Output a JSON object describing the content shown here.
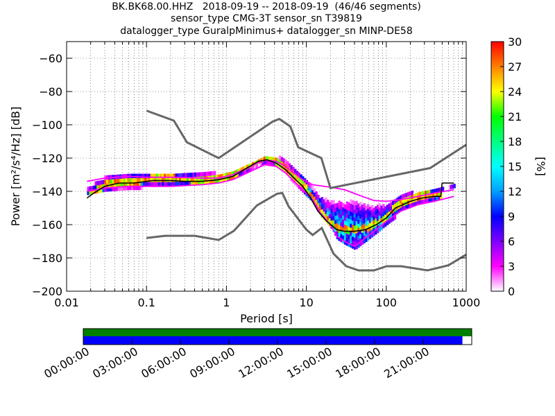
{
  "titles": [
    "BK.BK68.00.HHZ   2018-09-19 -- 2018-09-19  (46/46 segments)",
    "sensor_type CMG-3T sensor_sn T39819",
    "datalogger_type GuralpMinimus+ datalogger_sn MINP-DE58"
  ],
  "chart_data": {
    "type": "heatmap",
    "xlabel": "Period [s]",
    "ylabel": "Power [m²/s⁴/Hz] [dB]",
    "xscale": "log",
    "xlim": [
      0.01,
      1000
    ],
    "ylim": [
      -200,
      -50
    ],
    "x_ticks": [
      0.01,
      0.1,
      1,
      10,
      100,
      1000
    ],
    "x_tick_labels": [
      "0.01",
      "0.1",
      "1",
      "10",
      "100",
      "1000"
    ],
    "y_ticks": [
      -200,
      -180,
      -160,
      -140,
      -120,
      -100,
      -80,
      -60
    ],
    "grid": true,
    "colorbar": {
      "label": "[%]",
      "range": [
        0,
        30
      ],
      "ticks": [
        0,
        3,
        6,
        9,
        12,
        15,
        18,
        21,
        24,
        27,
        30
      ],
      "colormap": [
        "#ffffff",
        "#ff00ff",
        "#7f00ff",
        "#0000ff",
        "#00a0ff",
        "#00ffff",
        "#00ff80",
        "#00ff00",
        "#ffff00",
        "#ff8000",
        "#ff0000"
      ]
    },
    "noise_models": [
      {
        "color": "#666666",
        "points": [
          [
            0.1,
            -91.5
          ],
          [
            0.22,
            -97.5
          ],
          [
            0.32,
            -110.5
          ],
          [
            0.8,
            -120
          ],
          [
            3.8,
            -98
          ],
          [
            4.6,
            -96.5
          ],
          [
            6.3,
            -101
          ],
          [
            7.9,
            -113.5
          ],
          [
            15.4,
            -120
          ],
          [
            20,
            -138
          ],
          [
            354,
            -126
          ],
          [
            1000,
            -112
          ]
        ]
      },
      {
        "color": "#666666",
        "points": [
          [
            0.1,
            -168
          ],
          [
            0.17,
            -166.7
          ],
          [
            0.4,
            -166.7
          ],
          [
            0.8,
            -169.2
          ],
          [
            1.24,
            -163.7
          ],
          [
            2.4,
            -148.5
          ],
          [
            4.3,
            -141.4
          ],
          [
            5.0,
            -141
          ],
          [
            6.0,
            -149
          ],
          [
            10,
            -163
          ],
          [
            12,
            -166.2
          ],
          [
            15.6,
            -162
          ],
          [
            21.9,
            -177.5
          ],
          [
            31.6,
            -185
          ],
          [
            45,
            -187.5
          ],
          [
            70,
            -187.5
          ],
          [
            101,
            -185
          ],
          [
            154,
            -185
          ],
          [
            328,
            -187.5
          ],
          [
            600,
            -184.4
          ],
          [
            1000,
            -178
          ]
        ]
      }
    ],
    "mode_curve": {
      "color": "#000000",
      "points": [
        [
          0.018,
          -144
        ],
        [
          0.022,
          -141
        ],
        [
          0.03,
          -137
        ],
        [
          0.045,
          -135
        ],
        [
          0.07,
          -135
        ],
        [
          0.12,
          -133.5
        ],
        [
          0.2,
          -133.5
        ],
        [
          0.3,
          -134
        ],
        [
          0.5,
          -134
        ],
        [
          0.8,
          -133
        ],
        [
          1.2,
          -131
        ],
        [
          1.8,
          -126
        ],
        [
          2.5,
          -122
        ],
        [
          3.2,
          -121
        ],
        [
          4.2,
          -123
        ],
        [
          5.5,
          -127
        ],
        [
          7,
          -132
        ],
        [
          9,
          -137
        ],
        [
          11,
          -143
        ],
        [
          14,
          -152
        ],
        [
          18,
          -158
        ],
        [
          24,
          -163
        ],
        [
          30,
          -164
        ],
        [
          40,
          -164
        ],
        [
          55,
          -163
        ],
        [
          75,
          -160
        ],
        [
          100,
          -156
        ],
        [
          130,
          -150
        ],
        [
          200,
          -146
        ],
        [
          280,
          -144
        ],
        [
          400,
          -143
        ],
        [
          480,
          -143
        ],
        [
          500,
          -135
        ],
        [
          700,
          -135
        ]
      ]
    },
    "percentile_curves": [
      {
        "color": "#ff00ff",
        "points": [
          [
            0.018,
            -134
          ],
          [
            0.03,
            -132
          ],
          [
            0.06,
            -131
          ],
          [
            0.1,
            -131.5
          ],
          [
            0.2,
            -131.5
          ],
          [
            0.5,
            -132
          ],
          [
            0.8,
            -132
          ],
          [
            1.2,
            -130
          ],
          [
            2,
            -125
          ],
          [
            3,
            -121
          ],
          [
            4.2,
            -122
          ],
          [
            5.5,
            -125
          ],
          [
            7,
            -129
          ],
          [
            9,
            -133
          ],
          [
            12,
            -136
          ],
          [
            20,
            -137.5
          ],
          [
            30,
            -139
          ],
          [
            50,
            -143
          ],
          [
            70,
            -145.5
          ],
          [
            100,
            -146
          ],
          [
            150,
            -145
          ],
          [
            250,
            -143
          ],
          [
            400,
            -141
          ],
          [
            700,
            -139
          ]
        ]
      },
      {
        "color": "#ff00ff",
        "points": [
          [
            0.018,
            -140
          ],
          [
            0.03,
            -138
          ],
          [
            0.06,
            -137
          ],
          [
            0.1,
            -137
          ],
          [
            0.2,
            -137
          ],
          [
            0.5,
            -136
          ],
          [
            0.8,
            -135
          ],
          [
            1.2,
            -133
          ],
          [
            2,
            -128
          ],
          [
            3,
            -124
          ],
          [
            4.2,
            -125
          ],
          [
            5.5,
            -129
          ],
          [
            7,
            -134
          ],
          [
            9,
            -139
          ],
          [
            12,
            -145
          ],
          [
            15,
            -153
          ],
          [
            20,
            -160
          ],
          [
            24,
            -167
          ],
          [
            30,
            -170
          ],
          [
            40,
            -173
          ],
          [
            55,
            -168
          ],
          [
            75,
            -163
          ],
          [
            100,
            -158
          ],
          [
            150,
            -152
          ],
          [
            250,
            -148
          ],
          [
            400,
            -146
          ],
          [
            700,
            -143
          ]
        ]
      }
    ],
    "density_summary": [
      {
        "x": [
          0.018,
          0.1
        ],
        "y": [
          -145,
          -130
        ],
        "peak_pct": 20
      },
      {
        "x": [
          0.1,
          1
        ],
        "y": [
          -140,
          -124
        ],
        "peak_pct": 18
      },
      {
        "x": [
          1,
          8
        ],
        "y": [
          -135,
          -118
        ],
        "peak_pct": 28
      },
      {
        "x": [
          8,
          20
        ],
        "y": [
          -160,
          -130
        ],
        "peak_pct": 24
      },
      {
        "x": [
          20,
          80
        ],
        "y": [
          -175,
          -158
        ],
        "peak_pct": 16
      },
      {
        "x": [
          80,
          300
        ],
        "y": [
          -160,
          -142
        ],
        "peak_pct": 15
      },
      {
        "x": [
          300,
          700
        ],
        "y": [
          -146,
          -128
        ],
        "peak_pct": 12
      }
    ]
  },
  "timeline": {
    "labels": [
      "00:00:00",
      "03:00:00",
      "06:00:00",
      "09:00:00",
      "12:00:00",
      "15:00:00",
      "18:00:00",
      "21:00:00"
    ],
    "coverage_color": "#008000",
    "data_color": "#0000ff",
    "data_fraction": 0.976
  }
}
